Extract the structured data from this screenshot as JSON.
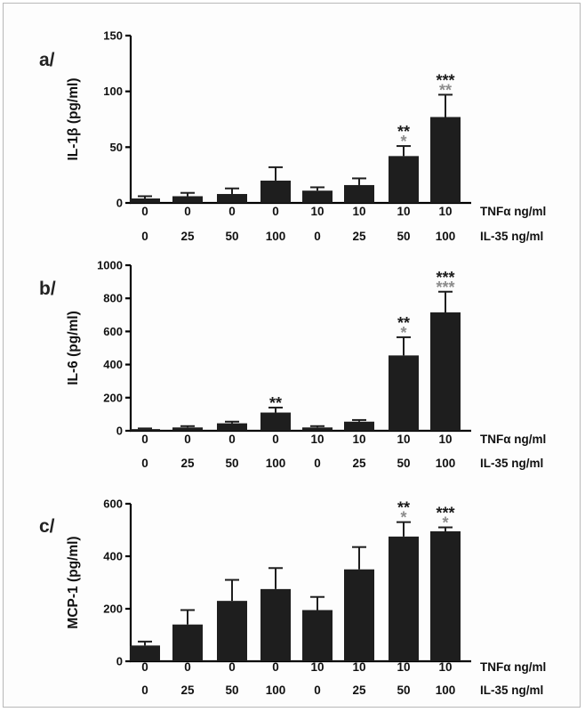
{
  "colors": {
    "bar": "#1e1e1e",
    "star_dark": "#1a1a1a",
    "star_gray": "#8c8c8c",
    "frame": "#b8b8b8"
  },
  "row_labels": {
    "tnf": "TNFα ng/ml",
    "il35": "IL-35 ng/ml"
  },
  "conditions": {
    "tnf": [
      "0",
      "0",
      "0",
      "0",
      "10",
      "10",
      "10",
      "10"
    ],
    "il35": [
      "0",
      "25",
      "50",
      "100",
      "0",
      "25",
      "50",
      "100"
    ]
  },
  "chart_data": [
    {
      "type": "bar",
      "panel_label": "a/",
      "ylabel": "IL-1β (pg/ml)",
      "ylim": [
        0,
        150
      ],
      "yticks": [
        0,
        50,
        100,
        150
      ],
      "categories": [
        "0/0",
        "0/25",
        "0/50",
        "0/100",
        "10/0",
        "10/25",
        "10/50",
        "10/100"
      ],
      "values": [
        4,
        6,
        8,
        20,
        11,
        16,
        42,
        77
      ],
      "errors": [
        2,
        3,
        5,
        12,
        3,
        6,
        9,
        20
      ],
      "sig_dark": [
        "",
        "",
        "",
        "",
        "",
        "",
        "**",
        "***"
      ],
      "sig_gray": [
        "",
        "",
        "",
        "",
        "",
        "",
        "*",
        "**"
      ]
    },
    {
      "type": "bar",
      "panel_label": "b/",
      "ylabel": "IL-6 (pg/ml)",
      "ylim": [
        0,
        1000
      ],
      "yticks": [
        0,
        200,
        400,
        600,
        800,
        1000
      ],
      "categories": [
        "0/0",
        "0/25",
        "0/50",
        "0/100",
        "10/0",
        "10/25",
        "10/50",
        "10/100"
      ],
      "values": [
        10,
        20,
        45,
        110,
        20,
        55,
        455,
        715
      ],
      "errors": [
        4,
        8,
        10,
        30,
        8,
        10,
        110,
        125
      ],
      "sig_dark": [
        "",
        "",
        "",
        "**",
        "",
        "",
        "**",
        "***"
      ],
      "sig_gray": [
        "",
        "",
        "",
        "",
        "",
        "",
        "*",
        "***"
      ]
    },
    {
      "type": "bar",
      "panel_label": "c/",
      "ylabel": "MCP-1 (pg/ml)",
      "ylim": [
        0,
        600
      ],
      "yticks": [
        0,
        200,
        400,
        600
      ],
      "categories": [
        "0/0",
        "0/25",
        "0/50",
        "0/100",
        "10/0",
        "10/25",
        "10/50",
        "10/100"
      ],
      "values": [
        60,
        140,
        230,
        275,
        195,
        350,
        475,
        495
      ],
      "errors": [
        15,
        55,
        80,
        80,
        50,
        85,
        55,
        15
      ],
      "sig_dark": [
        "",
        "",
        "",
        "",
        "",
        "",
        "**",
        "***"
      ],
      "sig_gray": [
        "",
        "",
        "",
        "",
        "",
        "",
        "*",
        "*"
      ]
    }
  ]
}
